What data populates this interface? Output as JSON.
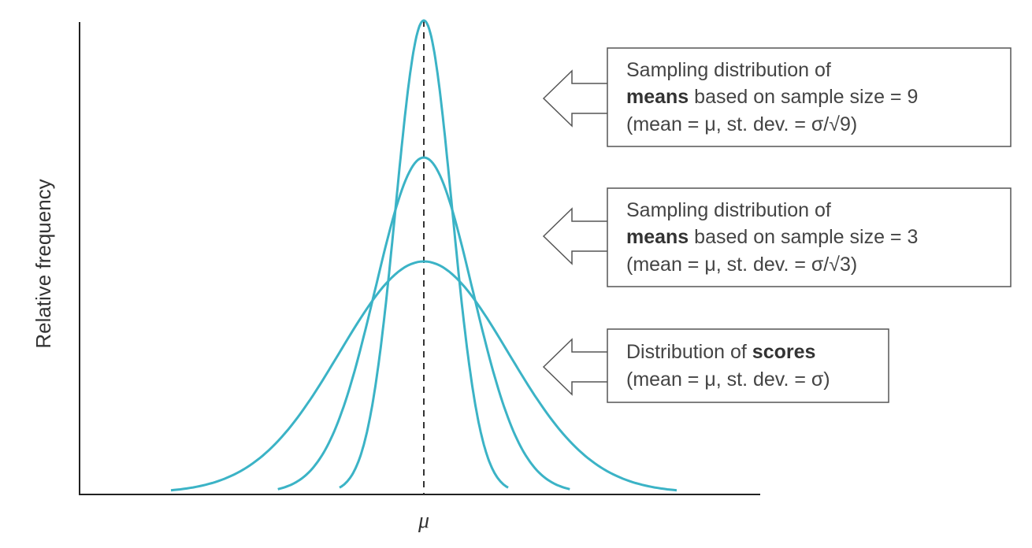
{
  "chart_data": {
    "type": "line",
    "title": "",
    "xlabel": "",
    "ylabel": "Relative frequency",
    "x_ticks": [
      "μ"
    ],
    "grid": false,
    "curve_color": "#3BB3C6",
    "mean_line": "dashed vertical line at μ",
    "series": [
      {
        "sd_divisor": 3,
        "relative_peak": 1.0,
        "annotation": {
          "line1": "Sampling distribution of",
          "line2_bold": "means",
          "line2_rest": " based on sample size = 9",
          "line3": "(mean = μ, st. dev. = σ/√9)"
        }
      },
      {
        "sd_divisor": 1.732,
        "relative_peak": 0.71,
        "annotation": {
          "line1": "Sampling distribution of",
          "line2_bold": "means",
          "line2_rest": " based on sample size = 3",
          "line3": "(mean = μ, st. dev. = σ/√3)"
        }
      },
      {
        "sd_divisor": 1,
        "relative_peak": 0.49,
        "annotation": {
          "line1_plain": "Distribution of ",
          "line1_bold": "scores",
          "line2": "(mean = μ, st. dev. = σ)"
        }
      }
    ]
  }
}
